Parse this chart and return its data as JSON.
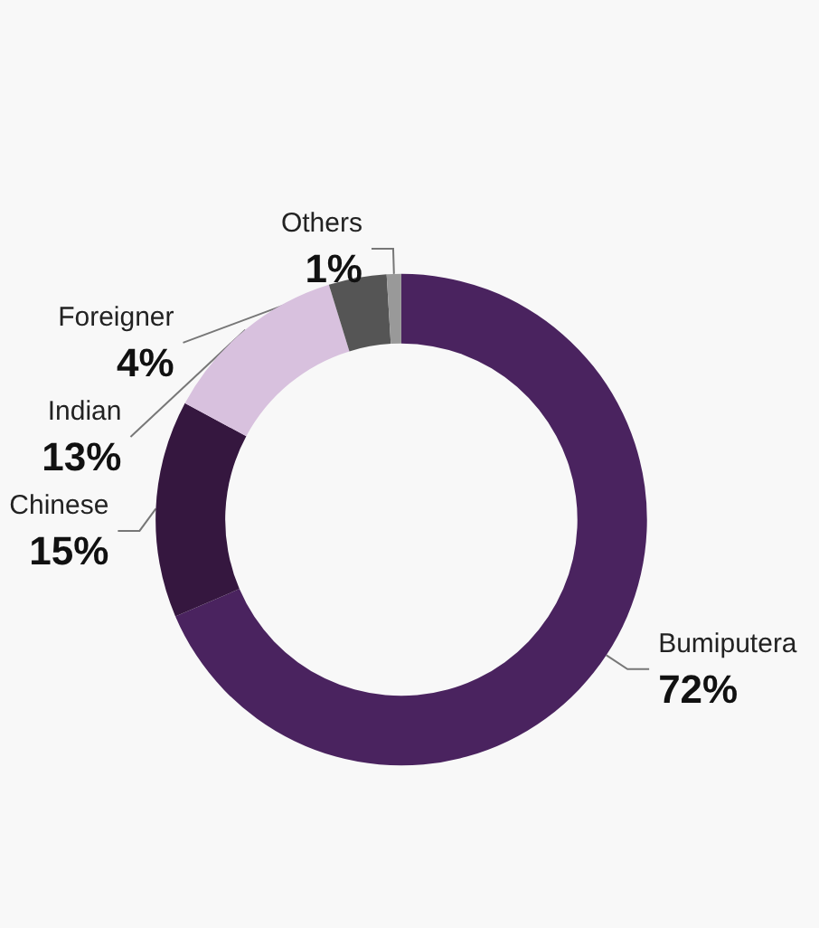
{
  "chart_data": {
    "type": "donut",
    "categories": [
      "Bumiputera",
      "Chinese",
      "Indian",
      "Foreigner",
      "Others"
    ],
    "values": [
      72,
      15,
      13,
      4,
      1
    ],
    "colors": [
      "#4a235f",
      "#35173f",
      "#d8c1de",
      "#555555",
      "#999999"
    ],
    "value_labels": [
      "72%",
      "15%",
      "13%",
      "4%",
      "1%"
    ],
    "legend": false
  }
}
